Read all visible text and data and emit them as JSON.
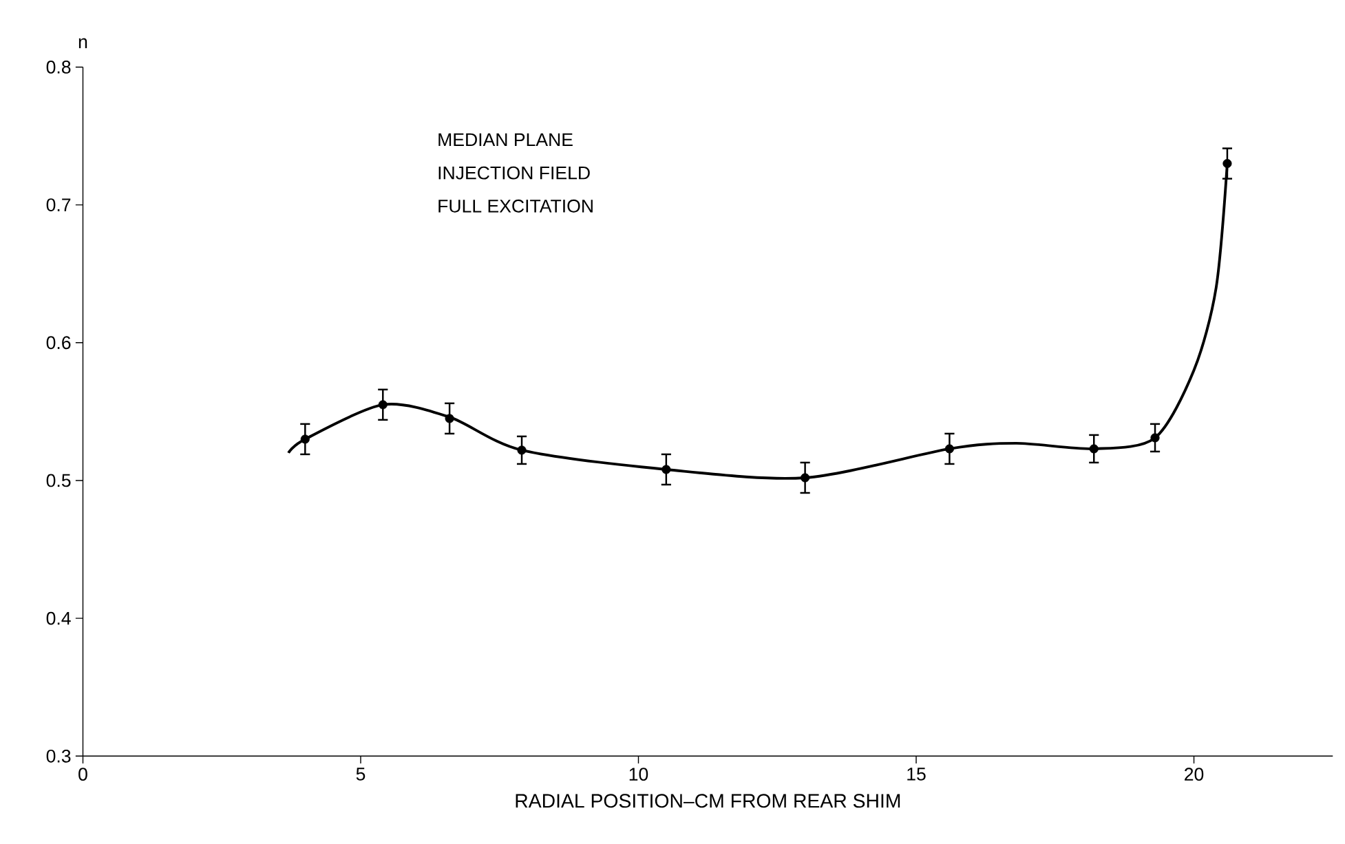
{
  "chart_data": {
    "type": "scatter",
    "xlabel": "RADIAL POSITION–CM FROM REAR SHIM",
    "ylabel": "n",
    "annotations": [
      "MEDIAN PLANE",
      "INJECTION FIELD",
      "FULL EXCITATION"
    ],
    "xlim": [
      0,
      22.5
    ],
    "ylim": [
      0.3,
      0.8
    ],
    "xticks": [
      0,
      5,
      10,
      15,
      20
    ],
    "yticks": [
      0.3,
      0.4,
      0.5,
      0.6,
      0.7,
      0.8
    ],
    "grid": false,
    "series": [
      {
        "type": "line",
        "color": "#000000",
        "marker": "none",
        "line_style": "solid",
        "x": [
          3.7,
          4.0,
          5.4,
          6.6,
          7.9,
          10.5,
          13.0,
          15.6,
          16.8,
          18.2,
          19.3,
          20.0,
          20.4,
          20.6
        ],
        "values": [
          0.52,
          0.53,
          0.555,
          0.546,
          0.522,
          0.508,
          0.502,
          0.523,
          0.527,
          0.523,
          0.531,
          0.58,
          0.64,
          0.73
        ]
      },
      {
        "color": "#000000",
        "marker": "circle",
        "x": [
          4.0,
          5.4,
          6.6,
          7.9,
          10.5,
          13.0,
          15.6,
          18.2,
          19.3,
          20.6
        ],
        "values": [
          0.53,
          0.555,
          0.545,
          0.522,
          0.508,
          0.502,
          0.523,
          0.523,
          0.531,
          0.73
        ],
        "errors": [
          0.011,
          0.011,
          0.011,
          0.01,
          0.011,
          0.011,
          0.011,
          0.01,
          0.01,
          0.011
        ]
      }
    ]
  }
}
